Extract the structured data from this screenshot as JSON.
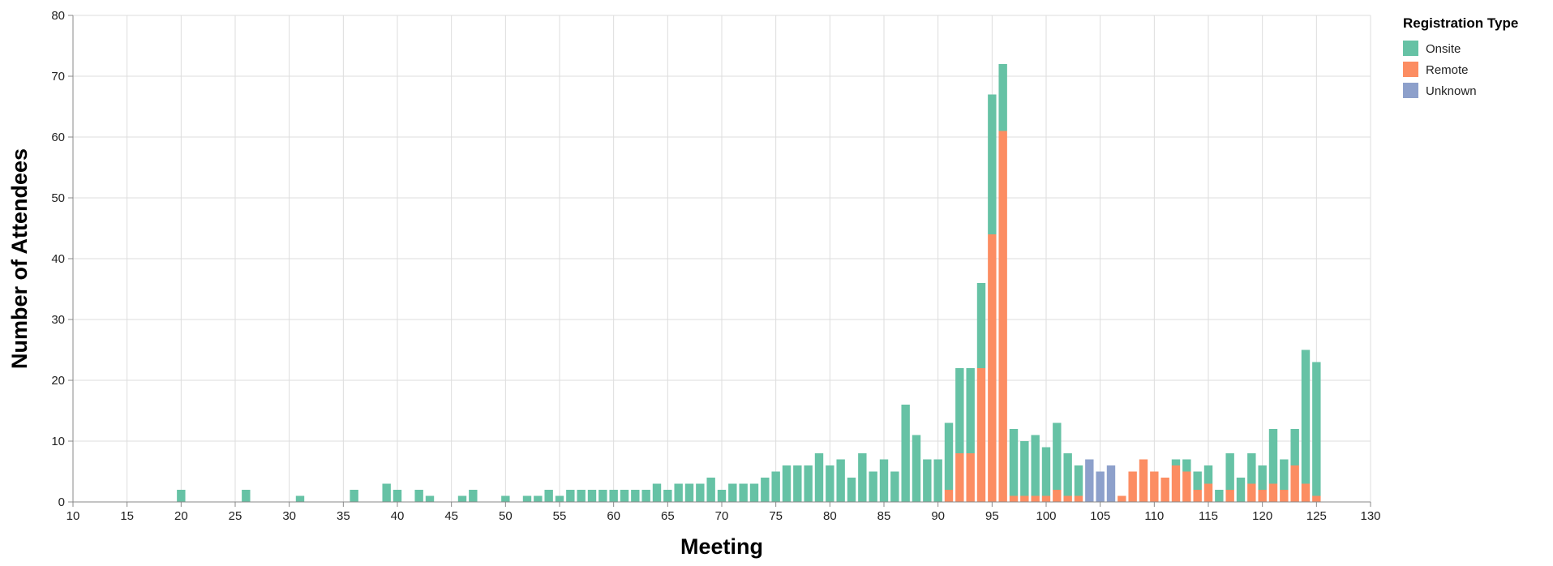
{
  "chart_data": {
    "type": "bar",
    "stacked": true,
    "xlabel": "Meeting",
    "ylabel": "Number of Attendees",
    "xlim": [
      10,
      130
    ],
    "ylim": [
      0,
      80
    ],
    "x_ticks": [
      10,
      15,
      20,
      25,
      30,
      35,
      40,
      45,
      50,
      55,
      60,
      65,
      70,
      75,
      80,
      85,
      90,
      95,
      100,
      105,
      110,
      115,
      120,
      125,
      130
    ],
    "y_ticks": [
      0,
      10,
      20,
      30,
      40,
      50,
      60,
      70,
      80
    ],
    "grid": true,
    "legend": {
      "title": "Registration Type",
      "position": "top-right",
      "entries": [
        "Onsite",
        "Remote",
        "Unknown"
      ]
    },
    "series": [
      {
        "name": "Onsite",
        "color": "#66c2a5",
        "points": [
          [
            20,
            2
          ],
          [
            26,
            2
          ],
          [
            31,
            1
          ],
          [
            36,
            2
          ],
          [
            39,
            3
          ],
          [
            40,
            2
          ],
          [
            42,
            2
          ],
          [
            43,
            1
          ],
          [
            46,
            1
          ],
          [
            47,
            2
          ],
          [
            50,
            1
          ],
          [
            52,
            1
          ],
          [
            53,
            1
          ],
          [
            54,
            2
          ],
          [
            55,
            1
          ],
          [
            56,
            2
          ],
          [
            57,
            2
          ],
          [
            58,
            2
          ],
          [
            59,
            2
          ],
          [
            60,
            2
          ],
          [
            61,
            2
          ],
          [
            62,
            2
          ],
          [
            63,
            2
          ],
          [
            64,
            3
          ],
          [
            65,
            2
          ],
          [
            66,
            3
          ],
          [
            67,
            3
          ],
          [
            68,
            3
          ],
          [
            69,
            4
          ],
          [
            70,
            2
          ],
          [
            71,
            3
          ],
          [
            72,
            3
          ],
          [
            73,
            3
          ],
          [
            74,
            4
          ],
          [
            75,
            5
          ],
          [
            76,
            6
          ],
          [
            77,
            6
          ],
          [
            78,
            6
          ],
          [
            79,
            8
          ],
          [
            80,
            6
          ],
          [
            81,
            7
          ],
          [
            82,
            4
          ],
          [
            83,
            8
          ],
          [
            84,
            5
          ],
          [
            85,
            7
          ],
          [
            86,
            5
          ],
          [
            87,
            16
          ],
          [
            88,
            11
          ],
          [
            89,
            7
          ],
          [
            90,
            7
          ],
          [
            91,
            11
          ],
          [
            92,
            14
          ],
          [
            93,
            14
          ],
          [
            94,
            14
          ],
          [
            95,
            23
          ],
          [
            96,
            11
          ],
          [
            97,
            11
          ],
          [
            98,
            9
          ],
          [
            99,
            10
          ],
          [
            100,
            8
          ],
          [
            101,
            11
          ],
          [
            102,
            7
          ],
          [
            103,
            5
          ],
          [
            112,
            1
          ],
          [
            113,
            2
          ],
          [
            114,
            3
          ],
          [
            115,
            3
          ],
          [
            116,
            2
          ],
          [
            117,
            6
          ],
          [
            118,
            4
          ],
          [
            119,
            5
          ],
          [
            120,
            4
          ],
          [
            121,
            9
          ],
          [
            122,
            5
          ],
          [
            123,
            6
          ],
          [
            124,
            22
          ],
          [
            125,
            22
          ]
        ]
      },
      {
        "name": "Remote",
        "color": "#fc8d62",
        "points": [
          [
            91,
            2
          ],
          [
            92,
            8
          ],
          [
            93,
            8
          ],
          [
            94,
            22
          ],
          [
            95,
            44
          ],
          [
            96,
            61
          ],
          [
            97,
            1
          ],
          [
            98,
            1
          ],
          [
            99,
            1
          ],
          [
            100,
            1
          ],
          [
            101,
            2
          ],
          [
            102,
            1
          ],
          [
            103,
            1
          ],
          [
            107,
            1
          ],
          [
            108,
            5
          ],
          [
            109,
            7
          ],
          [
            110,
            5
          ],
          [
            111,
            4
          ],
          [
            112,
            6
          ],
          [
            113,
            5
          ],
          [
            114,
            2
          ],
          [
            115,
            3
          ],
          [
            117,
            2
          ],
          [
            119,
            3
          ],
          [
            120,
            2
          ],
          [
            121,
            3
          ],
          [
            122,
            2
          ],
          [
            123,
            6
          ],
          [
            124,
            3
          ],
          [
            125,
            1
          ]
        ]
      },
      {
        "name": "Unknown",
        "color": "#8da0cb",
        "points": [
          [
            104,
            7
          ],
          [
            105,
            5
          ],
          [
            106,
            6
          ]
        ]
      }
    ]
  }
}
